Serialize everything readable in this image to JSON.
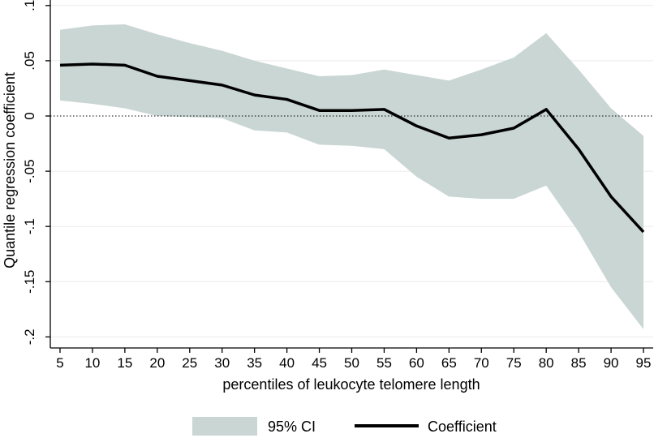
{
  "chart_data": {
    "type": "line",
    "title": "",
    "xlabel": "percentiles of leukocyte telomere length",
    "ylabel": "Quantile regression coefficient",
    "x": [
      5,
      10,
      15,
      20,
      25,
      30,
      35,
      40,
      45,
      50,
      55,
      60,
      65,
      70,
      75,
      80,
      85,
      90,
      95
    ],
    "x_ticks": [
      "5",
      "10",
      "15",
      "20",
      "25",
      "30",
      "35",
      "40",
      "45",
      "50",
      "55",
      "60",
      "65",
      "70",
      "75",
      "80",
      "85",
      "90",
      "95"
    ],
    "y_ticks": [
      {
        "value": 0.1,
        "label": ".1"
      },
      {
        "value": 0.05,
        "label": ".05"
      },
      {
        "value": 0,
        "label": "0"
      },
      {
        "value": -0.05,
        "label": "-.05"
      },
      {
        "value": -0.1,
        "label": "-.1"
      },
      {
        "value": -0.15,
        "label": "-.15"
      },
      {
        "value": -0.2,
        "label": "-.2"
      }
    ],
    "xlim": [
      3.5,
      96.5
    ],
    "ylim": [
      -0.21,
      0.105
    ],
    "reference_line": 0,
    "series": [
      {
        "name": "Coefficient",
        "type": "line",
        "color": "#000000",
        "values": [
          0.046,
          0.047,
          0.046,
          0.036,
          0.032,
          0.028,
          0.019,
          0.015,
          0.005,
          0.005,
          0.006,
          -0.009,
          -0.02,
          -0.017,
          -0.011,
          0.006,
          -0.03,
          -0.073,
          -0.105
        ]
      },
      {
        "name": "95% CI",
        "type": "band",
        "color": "#c9d6d3",
        "lower": [
          0.014,
          0.011,
          0.007,
          0.0,
          -0.001,
          -0.002,
          -0.013,
          -0.015,
          -0.026,
          -0.027,
          -0.03,
          -0.055,
          -0.073,
          -0.075,
          -0.075,
          -0.063,
          -0.105,
          -0.155,
          -0.193
        ],
        "upper": [
          0.078,
          0.082,
          0.083,
          0.074,
          0.066,
          0.059,
          0.05,
          0.043,
          0.036,
          0.037,
          0.042,
          0.037,
          0.032,
          0.042,
          0.053,
          0.075,
          0.042,
          0.007,
          -0.018
        ]
      }
    ],
    "legend": {
      "position": "bottom",
      "items": [
        {
          "label": "95% CI",
          "kind": "band"
        },
        {
          "label": "Coefficient",
          "kind": "line"
        }
      ]
    }
  }
}
